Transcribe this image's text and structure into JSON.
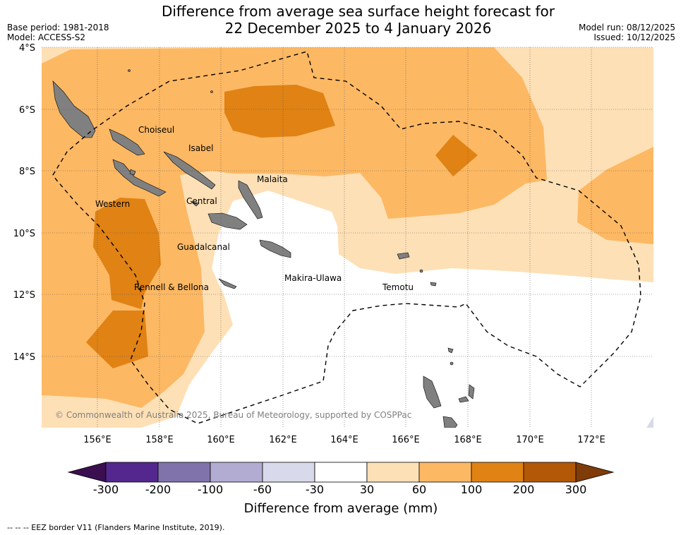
{
  "header": {
    "title_line1": "Difference from average sea surface height forecast for",
    "title_line2": "22 December 2025 to 4 January 2026",
    "base_period": "Base period: 1981-2018",
    "model": "Model: ACCESS-S2",
    "model_run": "Model run: 08/12/2025",
    "issued": "Issued: 10/12/2025"
  },
  "axes": {
    "lat_labels": [
      "4°S",
      "6°S",
      "8°S",
      "10°S",
      "12°S",
      "14°S"
    ],
    "lon_labels": [
      "156°E",
      "158°E",
      "160°E",
      "162°E",
      "164°E",
      "166°E",
      "168°E",
      "170°E",
      "172°E"
    ]
  },
  "places": {
    "choiseul": "Choiseul",
    "isabel": "Isabel",
    "malaita": "Malaita",
    "western": "Western",
    "central": "Central",
    "guadalcanal": "Guadalcanal",
    "makira_ulawa": "Makira-Ulawa",
    "temotu": "Temotu",
    "rennell_bellona": "Rennell & Bellona"
  },
  "copyright": "© Commonwealth of Australia 2025, Bureau of Meteorology, supported by COSPPac",
  "colorbar": {
    "title": "Difference from average (mm)",
    "tick_labels": [
      "-300",
      "-200",
      "-100",
      "-60",
      "-30",
      "30",
      "60",
      "100",
      "200",
      "300"
    ],
    "colors": {
      "under": "#3b0f4f",
      "c1": "#54278f",
      "c2": "#8073ac",
      "c3": "#b2abd2",
      "c4": "#d8daeb",
      "c5": "#ffffff",
      "c6": "#fee0b6",
      "c7": "#fdb863",
      "c8": "#e08214",
      "c9": "#b35806",
      "over": "#7f3b08"
    }
  },
  "legend": {
    "eez": "--  --  -- EEZ border V11 (Flanders Marine Institute, 2019)."
  },
  "colors": {
    "land": "#808080",
    "grid": "#555555"
  }
}
